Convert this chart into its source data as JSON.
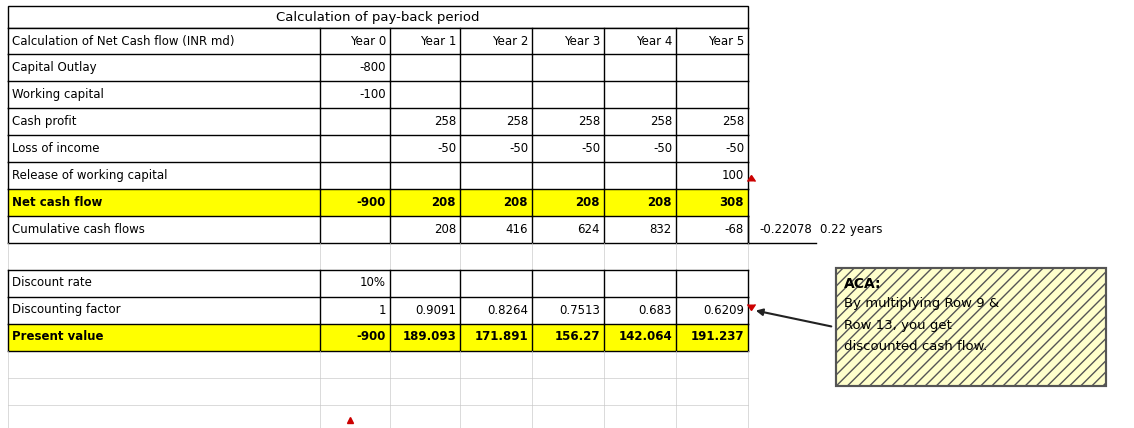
{
  "title": "Calculation of pay-back period",
  "col_headers": [
    "Calculation of Net Cash flow (INR md)",
    "Year 0",
    "Year 1",
    "Year 2",
    "Year 3",
    "Year 4",
    "Year 5"
  ],
  "rows": [
    {
      "label": "Capital Outlay",
      "values": [
        "-800",
        "",
        "",
        "",
        "",
        ""
      ],
      "highlight": false
    },
    {
      "label": "Working capital",
      "values": [
        "-100",
        "",
        "",
        "",
        "",
        ""
      ],
      "highlight": false
    },
    {
      "label": "Cash profit",
      "values": [
        "",
        "258",
        "258",
        "258",
        "258",
        "258"
      ],
      "highlight": false
    },
    {
      "label": "Loss of income",
      "values": [
        "",
        "-50",
        "-50",
        "-50",
        "-50",
        "-50"
      ],
      "highlight": false
    },
    {
      "label": "Release of working capital",
      "values": [
        "",
        "",
        "",
        "",
        "",
        "100"
      ],
      "highlight": false
    },
    {
      "label": "Net cash flow",
      "values": [
        "-900",
        "208",
        "208",
        "208",
        "208",
        "308"
      ],
      "highlight": true
    },
    {
      "label": "Cumulative cash flows",
      "values": [
        "",
        "208",
        "416",
        "624",
        "832",
        "-68"
      ],
      "highlight": false,
      "extra": [
        "-0.22078",
        "0.22 years"
      ]
    }
  ],
  "section2": [
    {
      "label": "Discount rate",
      "values": [
        "10%",
        "",
        "",
        "",
        "",
        ""
      ],
      "highlight": false
    },
    {
      "label": "Discounting factor",
      "values": [
        "1",
        "0.9091",
        "0.8264",
        "0.7513",
        "0.683",
        "0.6209"
      ],
      "highlight": false
    },
    {
      "label": "Present value",
      "values": [
        "-900",
        "189.093",
        "171.891",
        "156.27",
        "142.064",
        "191.237"
      ],
      "highlight": true
    }
  ],
  "yellow": "#FFFF00",
  "white": "#FFFFFF",
  "light_yellow": "#FFFFCC",
  "border_color": "#000000",
  "annotation_title": "ACA:",
  "annotation_body": "By multiplying Row 9 &\nRow 13, you get\ndiscounted cash flow."
}
